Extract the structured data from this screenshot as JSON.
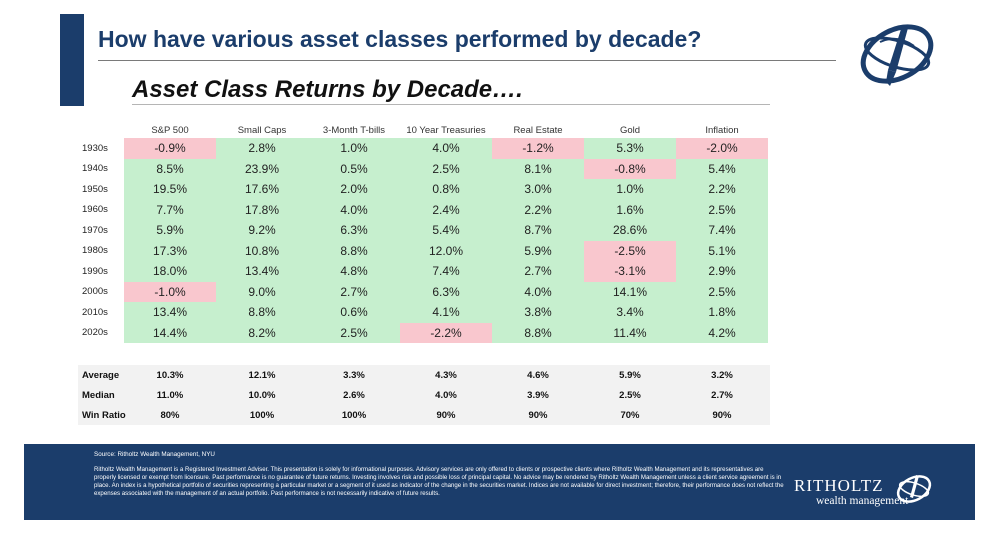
{
  "title": "How have various asset classes performed by decade?",
  "subtitle": "Asset Class Returns by Decade….",
  "chart_data": {
    "type": "table",
    "columns": [
      "S&P 500",
      "Small Caps",
      "3-Month T-bills",
      "10 Year Treasuries",
      "Real Estate",
      "Gold",
      "Inflation"
    ],
    "rows": [
      {
        "label": "1930s",
        "values": [
          "-0.9%",
          "2.8%",
          "1.0%",
          "4.0%",
          "-1.2%",
          "5.3%",
          "-2.0%"
        ]
      },
      {
        "label": "1940s",
        "values": [
          "8.5%",
          "23.9%",
          "0.5%",
          "2.5%",
          "8.1%",
          "-0.8%",
          "5.4%"
        ]
      },
      {
        "label": "1950s",
        "values": [
          "19.5%",
          "17.6%",
          "2.0%",
          "0.8%",
          "3.0%",
          "1.0%",
          "2.2%"
        ]
      },
      {
        "label": "1960s",
        "values": [
          "7.7%",
          "17.8%",
          "4.0%",
          "2.4%",
          "2.2%",
          "1.6%",
          "2.5%"
        ]
      },
      {
        "label": "1970s",
        "values": [
          "5.9%",
          "9.2%",
          "6.3%",
          "5.4%",
          "8.7%",
          "28.6%",
          "7.4%"
        ]
      },
      {
        "label": "1980s",
        "values": [
          "17.3%",
          "10.8%",
          "8.8%",
          "12.0%",
          "5.9%",
          "-2.5%",
          "5.1%"
        ]
      },
      {
        "label": "1990s",
        "values": [
          "18.0%",
          "13.4%",
          "4.8%",
          "7.4%",
          "2.7%",
          "-3.1%",
          "2.9%"
        ]
      },
      {
        "label": "2000s",
        "values": [
          "-1.0%",
          "9.0%",
          "2.7%",
          "6.3%",
          "4.0%",
          "14.1%",
          "2.5%"
        ]
      },
      {
        "label": "2010s",
        "values": [
          "13.4%",
          "8.8%",
          "0.6%",
          "4.1%",
          "3.8%",
          "3.4%",
          "1.8%"
        ]
      },
      {
        "label": "2020s",
        "values": [
          "14.4%",
          "8.2%",
          "2.5%",
          "-2.2%",
          "8.8%",
          "11.4%",
          "4.2%"
        ]
      }
    ],
    "summary": [
      {
        "label": "Average",
        "values": [
          "10.3%",
          "12.1%",
          "3.3%",
          "4.3%",
          "4.6%",
          "5.9%",
          "3.2%"
        ]
      },
      {
        "label": "Median",
        "values": [
          "11.0%",
          "10.0%",
          "2.6%",
          "4.0%",
          "3.9%",
          "2.5%",
          "2.7%"
        ]
      },
      {
        "label": "Win Ratio",
        "values": [
          "80%",
          "100%",
          "100%",
          "90%",
          "90%",
          "70%",
          "90%"
        ]
      }
    ]
  },
  "footer": {
    "source": "Source: Ritholtz Wealth Management, NYU",
    "disclaimer": "Ritholtz Wealth Management is a Registered Investment Adviser. This presentation is solely for informational purposes. Advisory services are only offered to clients or prospective clients where Ritholtz Wealth Management and its representatives are properly licensed or exempt from licensure. Past performance is no guarantee of future returns. Investing involves risk and possible loss of principal capital. No advice may be rendered by Ritholtz Wealth Management unless a client service agreement is in place. An index is a hypothetical portfolio of securities representing a particular market or a segment of it used as indicator of the change in the securities market. Indices are not available for direct investment; therefore, their performance does not reflect the expenses associated with the management of an actual portfolio. Past performance is not necessarily indicative of future results.",
    "brand": "RITHOLTZ",
    "brand_sub": "wealth management"
  },
  "colors": {
    "navy": "#1b3d6b",
    "positive_fill": "#c6efce",
    "negative_fill": "#f9c7ce",
    "summary_fill": "#f2f2f2"
  },
  "icons": {
    "top_logo": "ritholtz-globe-logo",
    "footer_logo": "ritholtz-globe-logo"
  }
}
